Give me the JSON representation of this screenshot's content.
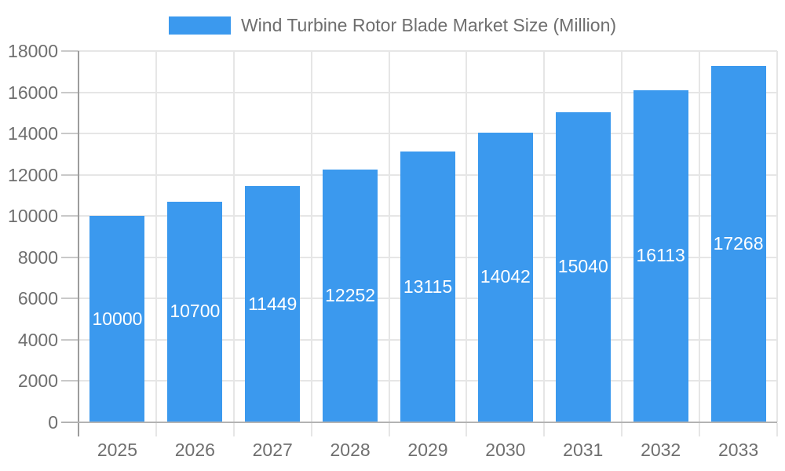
{
  "chart_data": {
    "type": "bar",
    "title": "Wind Turbine Rotor Blade Market Size (Million)",
    "legend_label": "Wind Turbine Rotor Blade Market Size (Million)",
    "categories": [
      "2025",
      "2026",
      "2027",
      "2028",
      "2029",
      "2030",
      "2031",
      "2032",
      "2033"
    ],
    "values": [
      10000,
      10700,
      11449,
      12252,
      13115,
      14042,
      15040,
      16113,
      17268
    ],
    "xlabel": "",
    "ylabel": "",
    "ylim": [
      0,
      18000
    ],
    "yticks": [
      0,
      2000,
      4000,
      6000,
      8000,
      10000,
      12000,
      14000,
      16000,
      18000
    ],
    "grid": true,
    "legend_position": "top-center",
    "value_labels": "inside-bars-centered",
    "colors": {
      "bar": "#3B99EE",
      "bar_label_text": "#FFFFFF",
      "axis_text": "#6F6F6F",
      "grid_line": "#E6E6E6",
      "tick_line": "#C9C9C9",
      "x_axis_line": "#B3B3B3",
      "y_axis_line": "#9C9C9C",
      "background": "#FFFFFF"
    }
  }
}
